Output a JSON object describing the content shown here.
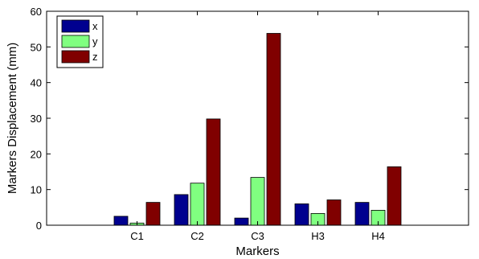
{
  "chart_data": {
    "type": "bar",
    "categories": [
      "C1",
      "C2",
      "C3",
      "H3",
      "H4"
    ],
    "series": [
      {
        "name": "x",
        "values": [
          2.5,
          8.6,
          2.0,
          6.0,
          6.4
        ],
        "color": "#00008f"
      },
      {
        "name": "y",
        "values": [
          0.6,
          11.8,
          13.4,
          3.3,
          4.2
        ],
        "color": "#80ff80"
      },
      {
        "name": "z",
        "values": [
          6.4,
          29.8,
          53.8,
          7.1,
          16.4
        ],
        "color": "#800000"
      }
    ],
    "xlabel": "Markers",
    "ylabel": "Markers Displacement (mm)",
    "ylim": [
      0,
      60
    ],
    "yticks": [
      0,
      10,
      20,
      30,
      40,
      50,
      60
    ],
    "legend_position": "top-left",
    "grid": false
  }
}
